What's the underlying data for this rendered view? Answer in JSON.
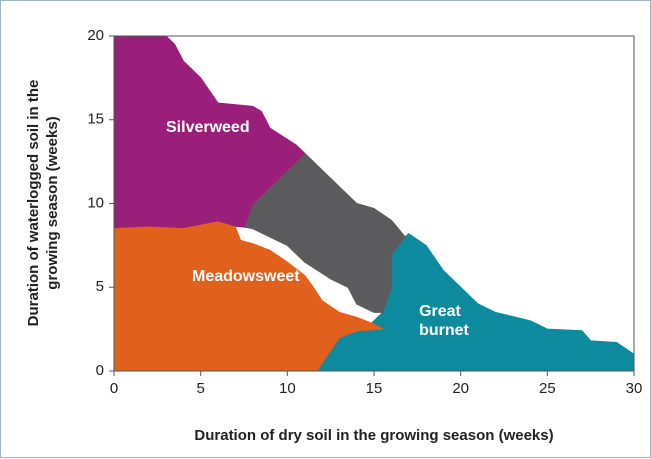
{
  "chart_data": {
    "type": "region",
    "x_label": "Duration of dry soil in the growing season (weeks)",
    "y_label": "Duration of waterlogged soil in the\ngrowing season (weeks)",
    "xlim": [
      0,
      30
    ],
    "xticks": [
      0,
      5,
      10,
      15,
      20,
      25,
      30
    ],
    "ylim": [
      0,
      20
    ],
    "yticks": [
      0,
      5,
      10,
      15,
      20
    ],
    "regions": [
      {
        "name": "Great\nburnet",
        "color": "#0e8a9e",
        "x": [
          16.8,
          17,
          18,
          19,
          20,
          21,
          22,
          24,
          25,
          27,
          27.5,
          29,
          30,
          30,
          11.7,
          13,
          14.5,
          15.5,
          16,
          16
        ],
        "y": [
          8,
          8.2,
          7.5,
          6,
          5,
          4,
          3.5,
          3,
          2.5,
          2.4,
          1.8,
          1.7,
          1,
          0,
          0,
          2,
          2.5,
          3.5,
          5,
          7
        ]
      },
      {
        "name": "",
        "color": "#5b5b5d",
        "x": [
          11,
          12,
          13,
          14,
          15,
          16,
          16.8,
          16,
          16,
          15.5,
          15,
          14,
          13.5,
          12.5,
          11,
          10,
          9,
          8,
          7.5,
          8,
          9,
          10
        ],
        "y": [
          13,
          12,
          11,
          10,
          9.7,
          9,
          8,
          7,
          5,
          3.5,
          3.5,
          4,
          5,
          5.5,
          6.5,
          7.5,
          8,
          8.5,
          8.6,
          10,
          11,
          12
        ]
      },
      {
        "name": "Silverweed",
        "color": "#9a1f7b",
        "x": [
          0,
          3,
          3.5,
          4,
          5,
          6,
          8,
          8.5,
          9,
          10.5,
          11,
          10,
          9,
          8,
          7.5,
          6,
          4,
          2,
          0
        ],
        "y": [
          20,
          20,
          19.5,
          18.5,
          17.5,
          16,
          15.8,
          15.5,
          14.5,
          13.5,
          13,
          12,
          11,
          10,
          8.6,
          8.7,
          8.5,
          8.6,
          8.5
        ]
      },
      {
        "name": "Meadowsweet",
        "color": "#e0601c",
        "x": [
          0,
          2,
          4,
          6,
          7,
          7.3,
          8,
          9,
          10,
          11,
          11.5,
          12,
          13,
          14,
          15,
          15.5,
          14,
          13,
          11.7,
          0
        ],
        "y": [
          8.5,
          8.6,
          8.5,
          8.9,
          8.6,
          7.8,
          7.6,
          7.2,
          6.5,
          5.7,
          5,
          4.2,
          3.5,
          3.2,
          2.8,
          2.5,
          2.4,
          2,
          0,
          0
        ]
      }
    ]
  }
}
